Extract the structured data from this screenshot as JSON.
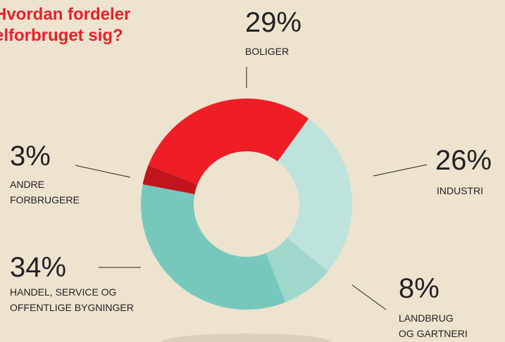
{
  "chart_data": {
    "type": "donut",
    "title": "Hvordan fordeler elforbruget sig?",
    "categories": [
      "BOLIGER",
      "INDUSTRI",
      "LANDBRUG\nOG GARTNERI",
      "HANDEL, SERVICE OG\nOFFENTLIGE BYGNINGER",
      "ANDRE\nFORBRUGERE"
    ],
    "values": [
      29,
      26,
      8,
      34,
      3
    ],
    "value_labels": [
      "29%",
      "26%",
      "8%",
      "34%",
      "3%"
    ],
    "colors": [
      "#ee1d26",
      "#bee3dc",
      "#9fd7cd",
      "#76c8bd",
      "#c1141d"
    ]
  }
}
